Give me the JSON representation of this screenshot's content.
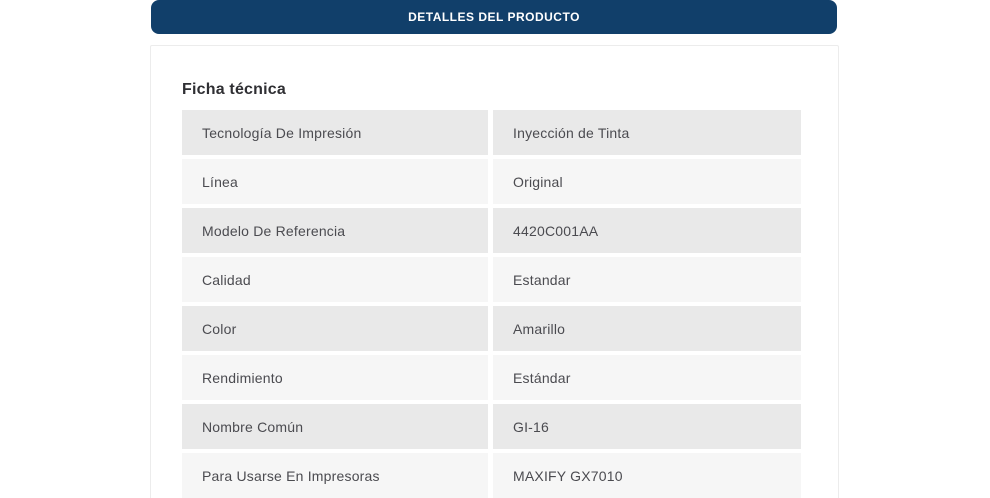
{
  "header": {
    "title": "DETALLES DEL PRODUCTO"
  },
  "section": {
    "title": "Ficha técnica"
  },
  "spec_table": {
    "rows": [
      {
        "label": "Tecnología De Impresión",
        "value": "Inyección de Tinta"
      },
      {
        "label": "Línea",
        "value": "Original"
      },
      {
        "label": "Modelo De Referencia",
        "value": "4420C001AA"
      },
      {
        "label": "Calidad",
        "value": "Estandar"
      },
      {
        "label": "Color",
        "value": "Amarillo"
      },
      {
        "label": "Rendimiento",
        "value": "Estándar"
      },
      {
        "label": "Nombre Común",
        "value": "GI-16"
      },
      {
        "label": "Para Usarse En Impresoras",
        "value": "MAXIFY GX7010"
      }
    ]
  },
  "colors": {
    "header_bg": "#113f6a",
    "header_text": "#ffffff",
    "row_odd_bg": "#e9e9e9",
    "row_even_bg": "#f6f6f6",
    "cell_text": "#4b4b50"
  }
}
